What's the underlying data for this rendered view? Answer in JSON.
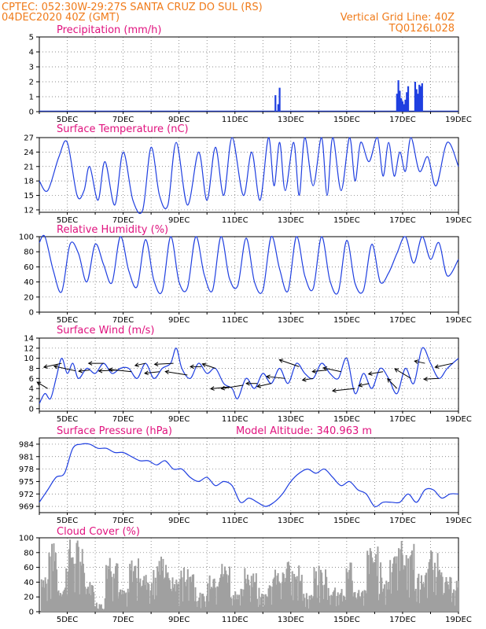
{
  "header": {
    "line1_left": "CPTEC:  052:30W-29:27S  SANTA CRUZ DO SUL (RS)",
    "line2_left": "04DEC2020 40Z (GMT)",
    "line2_right": "Vertical Grid Line: 40Z",
    "line3_right": "TQ0126L028"
  },
  "colors": {
    "header": "#f07b1a",
    "title": "#e0127e",
    "line": "#1f3fe0",
    "cloud": "#a0a0a0",
    "arrow": "#000000"
  },
  "x_ticks": [
    "5DEC",
    "7DEC",
    "9DEC",
    "11DEC",
    "13DEC",
    "15DEC",
    "17DEC",
    "19DEC"
  ],
  "chart_data": [
    {
      "type": "bar",
      "title": "Precipitation (mm/h)",
      "x": "time (4DEC-19DEC 2020)",
      "ylim": [
        0,
        5
      ],
      "yticks": [
        0,
        1,
        2,
        3,
        4,
        5
      ],
      "x_days": [
        12.45,
        12.55,
        12.6,
        16.8,
        16.85,
        16.9,
        16.95,
        17.0,
        17.05,
        17.1,
        17.15,
        17.2,
        17.45,
        17.5,
        17.55,
        17.6,
        17.65,
        17.7
      ],
      "values": [
        1.1,
        0.5,
        1.6,
        1.2,
        2.1,
        1.4,
        0.9,
        0.7,
        0.5,
        0.8,
        1.3,
        1.7,
        2.0,
        1.5,
        1.2,
        1.8,
        1.7,
        1.9
      ]
    },
    {
      "type": "line",
      "title": "Surface Temperature (nC)",
      "ylim": [
        11.5,
        27
      ],
      "yticks": [
        12,
        15,
        18,
        21,
        24,
        27
      ],
      "x_days": [
        4.0,
        4.3,
        4.7,
        5.0,
        5.35,
        5.6,
        5.8,
        6.1,
        6.35,
        6.7,
        7.0,
        7.35,
        7.7,
        8.0,
        8.3,
        8.6,
        8.9,
        9.3,
        9.7,
        10.0,
        10.3,
        10.6,
        10.9,
        11.3,
        11.6,
        11.9,
        12.2,
        12.4,
        12.6,
        12.8,
        13.1,
        13.3,
        13.5,
        13.8,
        14.1,
        14.3,
        14.5,
        14.8,
        15.1,
        15.3,
        15.5,
        15.8,
        16.1,
        16.3,
        16.5,
        16.7,
        16.9,
        17.1,
        17.3,
        17.6,
        17.9,
        18.2,
        18.6,
        19.0
      ],
      "values": [
        18,
        16,
        23,
        26,
        15,
        16,
        21,
        14,
        22,
        13,
        24,
        14,
        12,
        25,
        15,
        13,
        26,
        13,
        24,
        14,
        25,
        15,
        27,
        15,
        24,
        14,
        27,
        17,
        26,
        16,
        26,
        15,
        27,
        17,
        27,
        15,
        27,
        16,
        27,
        18,
        26,
        22,
        27,
        19,
        26,
        19,
        24,
        20,
        27,
        20,
        23,
        17,
        26,
        21
      ]
    },
    {
      "type": "line",
      "title": "Relative Humidity (%)",
      "ylim": [
        0,
        100
      ],
      "yticks": [
        0,
        20,
        40,
        60,
        80,
        100
      ],
      "x_days": [
        4.0,
        4.2,
        4.5,
        4.8,
        5.1,
        5.4,
        5.7,
        6.0,
        6.3,
        6.6,
        6.9,
        7.2,
        7.5,
        7.8,
        8.1,
        8.4,
        8.7,
        9.0,
        9.3,
        9.6,
        9.9,
        10.2,
        10.5,
        10.8,
        11.1,
        11.4,
        11.7,
        12.0,
        12.3,
        12.6,
        12.9,
        13.2,
        13.5,
        13.8,
        14.1,
        14.4,
        14.7,
        15.0,
        15.3,
        15.6,
        15.9,
        16.2,
        16.5,
        16.8,
        17.1,
        17.4,
        17.7,
        18.0,
        18.3,
        18.6,
        19.0
      ],
      "values": [
        92,
        100,
        55,
        27,
        90,
        78,
        40,
        90,
        63,
        39,
        100,
        55,
        34,
        96,
        42,
        28,
        100,
        40,
        32,
        100,
        50,
        29,
        100,
        45,
        35,
        98,
        40,
        29,
        100,
        57,
        28,
        100,
        48,
        31,
        100,
        42,
        27,
        95,
        38,
        29,
        90,
        40,
        52,
        78,
        100,
        65,
        100,
        70,
        92,
        48,
        70
      ]
    },
    {
      "type": "line",
      "title": "Surface Wind (m/s)",
      "ylim": [
        -0.5,
        14
      ],
      "yticks": [
        0,
        2,
        4,
        6,
        8,
        10,
        12,
        14
      ],
      "x_days": [
        4.0,
        4.2,
        4.4,
        4.6,
        4.8,
        5.0,
        5.2,
        5.4,
        5.7,
        6.0,
        6.3,
        6.6,
        6.9,
        7.2,
        7.5,
        7.8,
        8.1,
        8.4,
        8.7,
        8.9,
        9.1,
        9.4,
        9.7,
        10.0,
        10.3,
        10.6,
        10.9,
        11.1,
        11.4,
        11.7,
        12.0,
        12.3,
        12.6,
        12.9,
        13.2,
        13.5,
        13.8,
        14.1,
        14.4,
        14.7,
        15.0,
        15.3,
        15.6,
        15.9,
        16.2,
        16.5,
        16.8,
        17.1,
        17.4,
        17.7,
        18.0,
        18.3,
        18.6,
        19.0
      ],
      "values": [
        1,
        3,
        2,
        6,
        10,
        7,
        9,
        6,
        8,
        7,
        9,
        7,
        8,
        8,
        6,
        9,
        6,
        8,
        9,
        12,
        8,
        6,
        9,
        7,
        8,
        5,
        4,
        2,
        6,
        4,
        7,
        5,
        8,
        5,
        9,
        7,
        6,
        9,
        7,
        6,
        10,
        3,
        7,
        4,
        8,
        6,
        3,
        8,
        5,
        12,
        9,
        6,
        8,
        10
      ]
    },
    {
      "type": "line",
      "title": "Surface Pressure (hPa)",
      "annotation": "Model Altitude: 340.963  m",
      "ylim": [
        967.5,
        985.5
      ],
      "yticks": [
        969,
        972,
        975,
        978,
        981,
        984
      ],
      "x_days": [
        4.0,
        4.3,
        4.6,
        4.9,
        5.2,
        5.5,
        5.8,
        6.1,
        6.4,
        6.7,
        7.0,
        7.3,
        7.6,
        7.9,
        8.2,
        8.5,
        8.8,
        9.1,
        9.4,
        9.7,
        10.0,
        10.3,
        10.6,
        10.9,
        11.2,
        11.5,
        11.8,
        12.1,
        12.4,
        12.7,
        13.0,
        13.3,
        13.6,
        13.9,
        14.2,
        14.5,
        14.8,
        15.1,
        15.4,
        15.7,
        16.0,
        16.3,
        16.6,
        16.9,
        17.2,
        17.5,
        17.8,
        18.1,
        18.4,
        18.7,
        19.0
      ],
      "values": [
        970,
        973,
        976,
        977,
        983,
        984,
        984,
        983,
        983,
        982,
        982,
        981,
        980,
        980,
        979,
        980,
        978,
        978,
        976,
        975,
        976,
        974,
        975,
        974,
        970,
        971,
        970,
        969,
        970,
        972,
        975,
        977,
        978,
        977,
        978,
        976,
        974,
        975,
        973,
        972,
        969,
        970,
        970,
        970,
        972,
        970,
        973,
        973,
        971,
        972,
        972
      ]
    },
    {
      "type": "bar",
      "title": "Cloud Cover (%)",
      "ylim": [
        0,
        100
      ],
      "yticks": [
        0,
        20,
        40,
        60,
        80,
        100
      ]
    }
  ]
}
